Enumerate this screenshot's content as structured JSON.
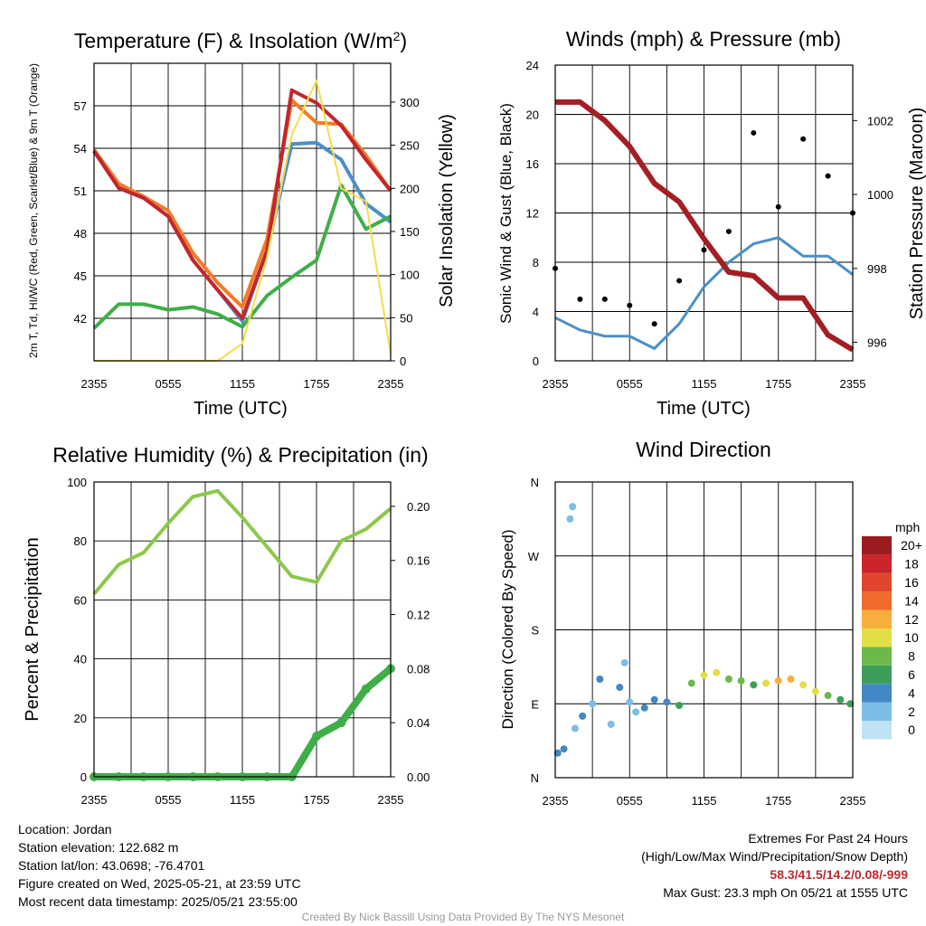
{
  "chart_data": [
    {
      "type": "line",
      "title": "Temperature (F) & Insolation (W/m²)",
      "xlabel": "Time (UTC)",
      "ylabel_left": "2m T, Td, HI/WC (Red, Green, Scarlet/Blue) & 9m T (Orange)",
      "ylabel_right": "Solar Insolation (Yellow)",
      "x_ticks": [
        "2355",
        "0555",
        "1155",
        "1755",
        "2355"
      ],
      "ylim": [
        39,
        60
      ],
      "y_ticks": [
        42,
        45,
        48,
        51,
        54,
        57
      ],
      "ylim_right": [
        0,
        345
      ],
      "y_ticks_right": [
        0,
        50,
        100,
        150,
        200,
        250,
        300
      ],
      "x": [
        0,
        2,
        4,
        6,
        8,
        10,
        12,
        14,
        16,
        18,
        20,
        22,
        24
      ],
      "series": [
        {
          "color": "#f47a26",
          "axis": "left",
          "values": [
            53.9,
            51.5,
            50.6,
            49.6,
            46.6,
            44.5,
            42.8,
            47.6,
            57.4,
            55.8,
            55.7,
            53.5,
            51.0
          ]
        },
        {
          "color": "#4a90c9",
          "axis": "left",
          "values": [
            53.8,
            51.2,
            50.5,
            49.2,
            46.1,
            44.0,
            41.8,
            46.8,
            54.3,
            54.4,
            53.2,
            50.1,
            48.8
          ]
        },
        {
          "color": "#c1272d",
          "axis": "left",
          "values": [
            53.8,
            51.2,
            50.5,
            49.2,
            46.1,
            44.0,
            42.0,
            46.8,
            58.1,
            57.2,
            55.6,
            53.2,
            51.0
          ]
        },
        {
          "color": "#3fae49",
          "axis": "left",
          "values": [
            41.3,
            43.0,
            43.0,
            42.6,
            42.8,
            42.3,
            41.4,
            43.6,
            44.9,
            46.1,
            51.4,
            48.3,
            49.2
          ]
        },
        {
          "color": "#f5dc4a",
          "axis": "right",
          "values": [
            0,
            0,
            0,
            0,
            0,
            0,
            20,
            120,
            262,
            325,
            200,
            185,
            8
          ]
        }
      ]
    },
    {
      "type": "line",
      "title": "Winds (mph) & Pressure (mb)",
      "xlabel": "Time (UTC)",
      "ylabel_left": "Sonic Wind & Gust (Blue, Black)",
      "ylabel_right": "Station Pressure (Maroon)",
      "x_ticks": [
        "2355",
        "0555",
        "1155",
        "1755",
        "2355"
      ],
      "ylim": [
        0,
        24
      ],
      "y_ticks": [
        0,
        4,
        8,
        12,
        16,
        20,
        24
      ],
      "ylim_right": [
        995.5,
        1003.5
      ],
      "y_ticks_right": [
        996,
        998,
        1000,
        1002
      ],
      "x": [
        0,
        2,
        4,
        6,
        8,
        10,
        12,
        14,
        16,
        18,
        20,
        22,
        24
      ],
      "series": [
        {
          "color": "#4a90c9",
          "axis": "left",
          "values": [
            3.5,
            2.5,
            2.0,
            2.0,
            1.0,
            3.0,
            6.0,
            8.0,
            9.5,
            10.0,
            8.5,
            8.5,
            7.0
          ]
        },
        {
          "color": "#000000",
          "axis": "left",
          "style": "dots",
          "values": [
            7.5,
            5.0,
            5.0,
            4.5,
            3.0,
            6.5,
            9.0,
            10.5,
            18.5,
            12.5,
            18.0,
            15.0,
            12.0
          ]
        },
        {
          "color": "#a31f24",
          "axis": "right",
          "values": [
            1002.5,
            1002.5,
            1002.0,
            1001.3,
            1000.3,
            999.8,
            998.8,
            997.9,
            997.8,
            997.2,
            997.2,
            996.2,
            995.8
          ]
        }
      ]
    },
    {
      "type": "line",
      "title": "Relative Humidity (%) & Precipitation (in)",
      "ylabel_left": "Percent & Precipitation",
      "x_ticks": [
        "2355",
        "0555",
        "1155",
        "1755",
        "2355"
      ],
      "ylim": [
        0,
        100
      ],
      "y_ticks": [
        0,
        20,
        40,
        60,
        80,
        100
      ],
      "ylim_right": [
        0,
        0.218
      ],
      "y_ticks_right": [
        "0.00",
        "0.04",
        "0.08",
        "0.12",
        "0.16",
        "0.20"
      ],
      "x": [
        0,
        2,
        4,
        6,
        8,
        10,
        12,
        14,
        16,
        18,
        20,
        22,
        24
      ],
      "series": [
        {
          "color": "#8cc84b",
          "axis": "left",
          "values": [
            62,
            72,
            76,
            86,
            95,
            97,
            88,
            78,
            68,
            66,
            80,
            84,
            91
          ]
        },
        {
          "color": "#3fae49",
          "axis": "right",
          "style": "dots",
          "values": [
            0,
            0,
            0,
            0,
            0,
            0,
            0,
            0,
            0,
            0.03,
            0.04,
            0.065,
            0.08
          ]
        }
      ]
    },
    {
      "type": "scatter",
      "title": "Wind Direction",
      "ylabel_left": "Direction (Colored By Speed)",
      "x_ticks": [
        "2355",
        "0555",
        "1155",
        "1755",
        "2355"
      ],
      "y_ticks": [
        "N",
        "E",
        "S",
        "W",
        "N"
      ],
      "ylim": [
        0,
        360
      ],
      "colorbar_title": "mph",
      "colorbar_labels": [
        "0",
        "2",
        "4",
        "6",
        "8",
        "10",
        "12",
        "14",
        "16",
        "18",
        "20+"
      ],
      "colorbar_colors": [
        "#bfe3f5",
        "#7cbde6",
        "#4288c4",
        "#3d9e5a",
        "#6db84a",
        "#e3de48",
        "#f7ae3d",
        "#f06a2c",
        "#e0452d",
        "#c9252b",
        "#9a1c20"
      ],
      "points": [
        {
          "x": 0.2,
          "y": 30,
          "s": 4
        },
        {
          "x": 0.7,
          "y": 35,
          "s": 3
        },
        {
          "x": 1.2,
          "y": 315,
          "s": 1
        },
        {
          "x": 1.4,
          "y": 330,
          "s": 1
        },
        {
          "x": 1.6,
          "y": 60,
          "s": 2
        },
        {
          "x": 2.2,
          "y": 75,
          "s": 3
        },
        {
          "x": 3.0,
          "y": 90,
          "s": 2
        },
        {
          "x": 3.6,
          "y": 120,
          "s": 3
        },
        {
          "x": 4.5,
          "y": 65,
          "s": 1
        },
        {
          "x": 5.2,
          "y": 110,
          "s": 3
        },
        {
          "x": 5.6,
          "y": 140,
          "s": 1
        },
        {
          "x": 6.0,
          "y": 92,
          "s": 2
        },
        {
          "x": 6.5,
          "y": 80,
          "s": 1
        },
        {
          "x": 7.2,
          "y": 85,
          "s": 3
        },
        {
          "x": 8.0,
          "y": 95,
          "s": 4
        },
        {
          "x": 9.0,
          "y": 92,
          "s": 4
        },
        {
          "x": 10.0,
          "y": 88,
          "s": 5
        },
        {
          "x": 11.0,
          "y": 115,
          "s": 7
        },
        {
          "x": 12.0,
          "y": 125,
          "s": 9
        },
        {
          "x": 13.0,
          "y": 128,
          "s": 10
        },
        {
          "x": 14.0,
          "y": 120,
          "s": 7
        },
        {
          "x": 15.0,
          "y": 118,
          "s": 8
        },
        {
          "x": 16.0,
          "y": 113,
          "s": 6
        },
        {
          "x": 17.0,
          "y": 115,
          "s": 9
        },
        {
          "x": 18.0,
          "y": 118,
          "s": 11
        },
        {
          "x": 19.0,
          "y": 120,
          "s": 12
        },
        {
          "x": 20.0,
          "y": 113,
          "s": 10
        },
        {
          "x": 21.0,
          "y": 105,
          "s": 9
        },
        {
          "x": 22.0,
          "y": 100,
          "s": 8
        },
        {
          "x": 23.0,
          "y": 95,
          "s": 6
        },
        {
          "x": 23.8,
          "y": 90,
          "s": 5
        }
      ]
    }
  ],
  "info": {
    "location": "Location: Jordan",
    "elevation": "Station elevation: 122.682 m",
    "latlon": "Station lat/lon: 43.0698; -76.4701",
    "created": "Figure created on Wed, 2025-05-21, at 23:59 UTC",
    "recent": "Most recent data timestamp: 2025/05/21 23:55:00"
  },
  "extremes": {
    "title": "Extremes For Past 24 Hours",
    "subtitle": "(High/Low/Max Wind/Precipitation/Snow Depth)",
    "values": "58.3/41.5/14.2/0.08/-999",
    "max_gust": "Max Gust: 23.3 mph On 05/21 at 1555 UTC"
  },
  "credit": "Created By Nick Bassill Using Data Provided By The NYS Mesonet"
}
